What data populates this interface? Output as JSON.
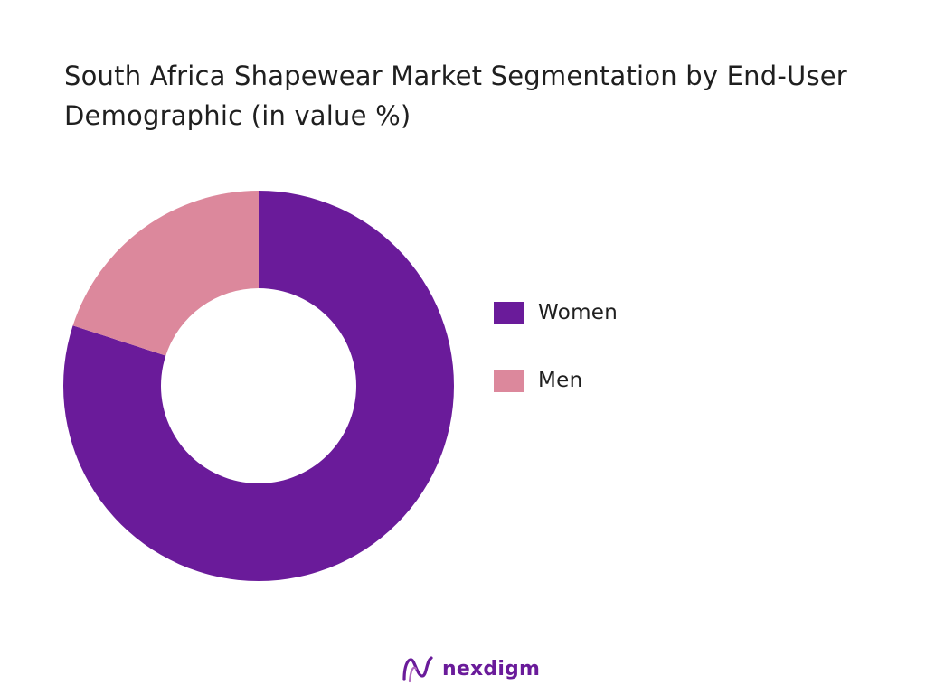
{
  "chart_data": {
    "type": "pie",
    "title": "South Africa Shapewear Market Segmentation by End-User Demographic (in value %)",
    "donut": true,
    "categories": [
      "Women",
      "Men"
    ],
    "values": [
      80,
      20
    ],
    "colors": [
      "#6a1b9a",
      "#dc889c"
    ],
    "legend_position": "right"
  },
  "brand": {
    "name": "nexdigm",
    "color": "#6a1b9a"
  }
}
